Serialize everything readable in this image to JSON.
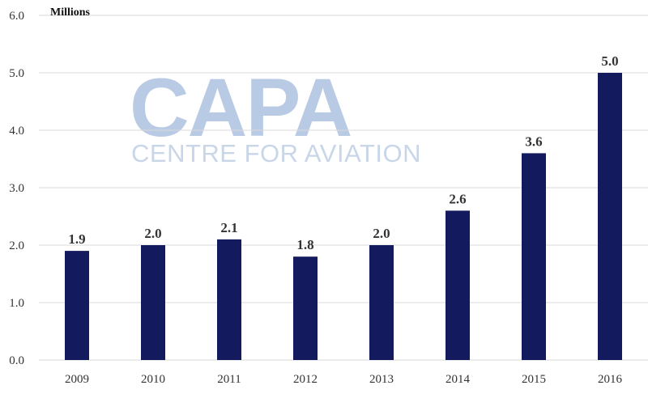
{
  "chart_data": {
    "type": "bar",
    "categories": [
      "2009",
      "2010",
      "2011",
      "2012",
      "2013",
      "2014",
      "2015",
      "2016"
    ],
    "values": [
      1.9,
      2.0,
      2.1,
      1.8,
      2.0,
      2.6,
      3.6,
      5.0
    ],
    "value_labels": [
      "1.9",
      "2.0",
      "2.1",
      "1.8",
      "2.0",
      "2.6",
      "3.6",
      "5.0"
    ],
    "y_unit_label": "Millions",
    "ylim": [
      0,
      6
    ],
    "y_ticks": [
      "0.0",
      "1.0",
      "2.0",
      "3.0",
      "4.0",
      "5.0",
      "6.0"
    ],
    "grid": true,
    "bar_color": "#131a5e"
  },
  "watermark": {
    "title": "CAPA",
    "subtitle": "CENTRE FOR AVIATION"
  }
}
